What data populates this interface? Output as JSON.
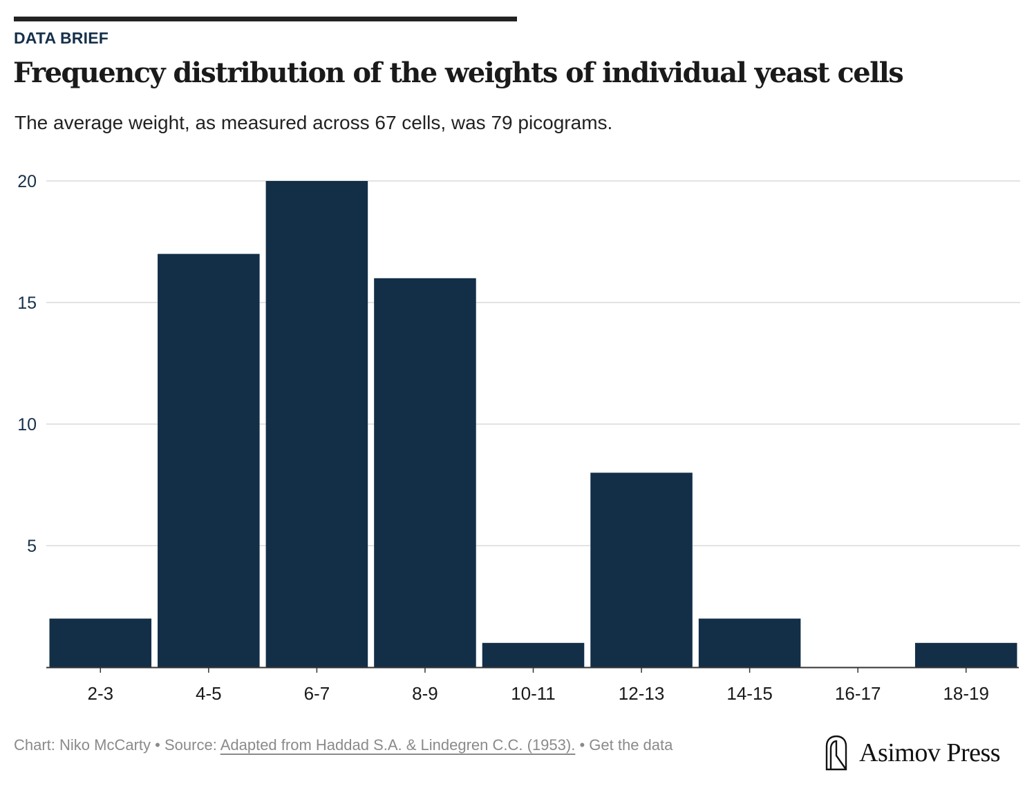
{
  "header": {
    "kicker": "DATA BRIEF",
    "title": "Frequency distribution of the weights of individual yeast cells",
    "subtitle": "The average weight, as measured across 67 cells, was 79 picograms."
  },
  "chart_data": {
    "type": "bar",
    "categories": [
      "2-3",
      "4-5",
      "6-7",
      "8-9",
      "10-11",
      "12-13",
      "14-15",
      "16-17",
      "18-19"
    ],
    "values": [
      2,
      17,
      20,
      16,
      1,
      8,
      2,
      0,
      1
    ],
    "title": "Frequency distribution of the weights of individual yeast cells",
    "xlabel": "",
    "ylabel": "",
    "ylim": [
      0,
      20
    ],
    "yticks": [
      5,
      10,
      15,
      20
    ],
    "grid": true,
    "bar_color": "#132f48",
    "grid_color": "#e3e3e3",
    "axis_color": "#333333",
    "tick_label_color": "#16304a"
  },
  "footer": {
    "chart_credit": "Chart: Niko McCarty",
    "separator": " • ",
    "source_prefix": "Source: ",
    "source_link": "Adapted from Haddad S.A. & Lindegren C.C. (1953).",
    "get_data": "Get the data",
    "brand": "Asimov Press",
    "brand_icon": "asimov-logo-icon"
  }
}
